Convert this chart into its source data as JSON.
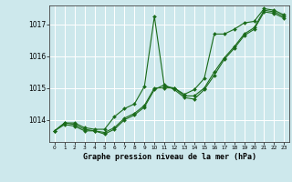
{
  "xlabel": "Graphe pression niveau de la mer (hPa)",
  "bg_color": "#cde8ec",
  "grid_color": "#ffffff",
  "line_color": "#1a6b1a",
  "marker_color": "#1a6b1a",
  "yticks": [
    1014,
    1015,
    1016,
    1017
  ],
  "ylim": [
    1013.3,
    1017.6
  ],
  "xlim": [
    -0.5,
    23.5
  ],
  "xticks": [
    0,
    1,
    2,
    3,
    4,
    5,
    6,
    7,
    8,
    9,
    10,
    11,
    12,
    13,
    14,
    15,
    16,
    17,
    18,
    19,
    20,
    21,
    22,
    23
  ],
  "series": [
    [
      1013.65,
      1013.9,
      1013.9,
      1013.75,
      1013.7,
      1013.7,
      1014.1,
      1014.35,
      1014.5,
      1015.05,
      1017.25,
      1015.05,
      1015.0,
      1014.8,
      1014.95,
      1015.3,
      1016.7,
      1016.7,
      1016.85,
      1017.05,
      1017.1,
      1017.5,
      1017.45,
      1017.3
    ],
    [
      1013.65,
      1013.9,
      1013.85,
      1013.7,
      1013.65,
      1013.6,
      1013.75,
      1014.05,
      1014.2,
      1014.45,
      1015.0,
      1015.0,
      1015.0,
      1014.75,
      1014.75,
      1015.0,
      1015.5,
      1015.95,
      1016.3,
      1016.7,
      1016.9,
      1017.45,
      1017.4,
      1017.25
    ],
    [
      1013.65,
      1013.85,
      1013.8,
      1013.65,
      1013.65,
      1013.55,
      1013.7,
      1014.0,
      1014.15,
      1014.4,
      1014.95,
      1015.1,
      1014.95,
      1014.7,
      1014.65,
      1014.95,
      1015.4,
      1015.9,
      1016.25,
      1016.65,
      1016.85,
      1017.4,
      1017.35,
      1017.2
    ]
  ]
}
